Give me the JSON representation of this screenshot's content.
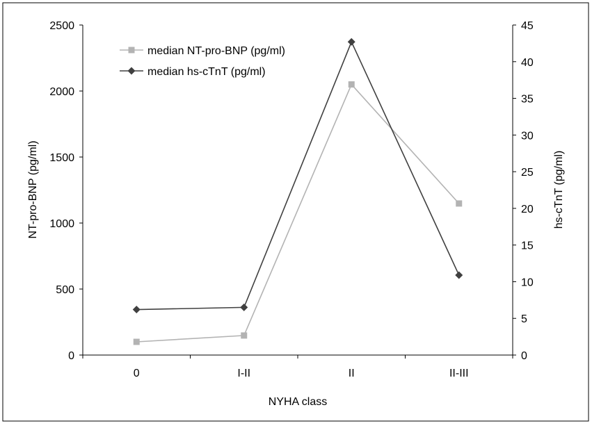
{
  "chart_data": {
    "type": "line",
    "categories": [
      "0",
      "I-II",
      "II",
      "II-III"
    ],
    "xlabel": "NYHA class",
    "ylabel_left": "NT-pro-BNP (pg/ml)",
    "ylabel_right": "hs-cTnT (pg/ml)",
    "ylim_left": [
      0,
      2500
    ],
    "ylim_right": [
      0,
      45
    ],
    "yticks_left": [
      0,
      500,
      1000,
      1500,
      2000,
      2500
    ],
    "yticks_right": [
      0,
      5,
      10,
      15,
      20,
      25,
      30,
      35,
      40,
      45
    ],
    "grid": false,
    "legend_position": "top-left",
    "series": [
      {
        "name": "median NT-pro-BNP (pg/ml)",
        "axis": "left",
        "marker": "square",
        "color": "#b3b3b3",
        "values": [
          100,
          148,
          2050,
          1148
        ]
      },
      {
        "name": "median hs-cTnT (pg/ml)",
        "axis": "right",
        "marker": "diamond",
        "color": "#404040",
        "values": [
          6.2,
          6.5,
          42.7,
          10.9
        ]
      }
    ]
  }
}
